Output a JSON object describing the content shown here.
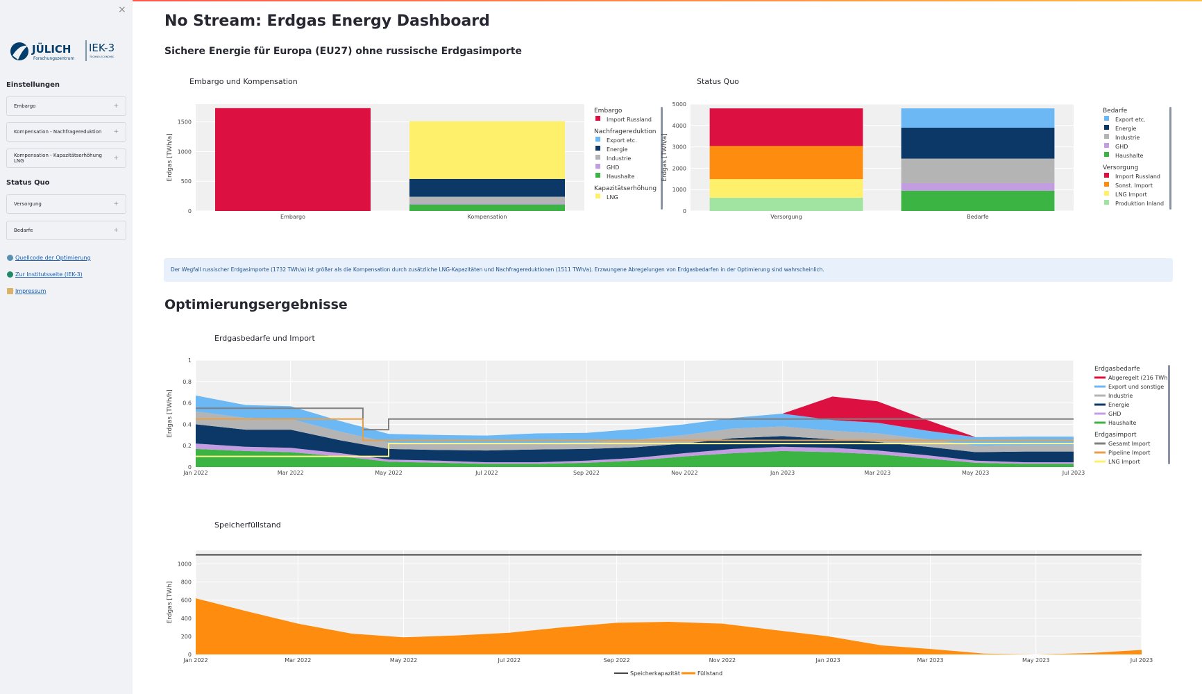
{
  "app": {
    "title": "No Stream: Erdgas Energy Dashboard",
    "subtitle": "Sichere Energie für Europa (EU27) ohne russische Erdgasimporte",
    "section2": "Optimierungsergebnisse"
  },
  "sidebar": {
    "close": "×",
    "logo_text": "JÜLICH",
    "logo_sub": "Forschungszentrum",
    "logo_inst": "IEK-3",
    "logo_inst_sub": "TECHNO-ECONOMIC SYSTEMS ANALYSIS",
    "heading1": "Einstellungen",
    "heading2": "Status Quo",
    "expanders1": [
      "Embargo",
      "Kompensation - Nachfragereduktion",
      "Kompensation - Kapazitätserhöhung LNG"
    ],
    "expanders2": [
      "Versorgung",
      "Bedarfe"
    ],
    "plus": "+",
    "links": [
      {
        "label": "Quellcode der Optimierung",
        "icon": "github-icon"
      },
      {
        "label": "Zur Institutsseite (IEK-3)",
        "icon": "globe-icon"
      },
      {
        "label": "Impressum",
        "icon": "scroll-icon"
      }
    ]
  },
  "banner": "Der Wegfall russischer Erdgasimporte (1732 TWh/a) ist größer als die Kompensation durch zusätzliche LNG-Kapazitäten und Nachfragereduktionen (1511 TWh/a). Erzwungene Abregelungen von Erdgasbedarfen in der Optimierung sind wahrscheinlich.",
  "colors": {
    "russland": "#dc1041",
    "sonst": "#fd8c0f",
    "lng": "#fff06b",
    "inland": "#a1e3a1",
    "export": "#6cb8f5",
    "energie": "#0c3867",
    "industrie": "#b4b4b4",
    "ghd": "#c49ce2",
    "haushalte": "#3bb443",
    "gesamt": "#808080",
    "pipeline": "#e8a048",
    "lngimport": "#fdf68a",
    "kapazitaet": "#444444",
    "fuellstand": "#fd8c0f"
  },
  "chart_data": [
    {
      "type": "bar",
      "title": "Embargo und Kompensation",
      "ylabel": "Erdgas [TWh/a]",
      "ylim": [
        0,
        1800
      ],
      "yticks": [
        0,
        500,
        1000,
        1500
      ],
      "categories": [
        "Embargo",
        "Kompensation"
      ],
      "legend_groups": [
        {
          "title": "Embargo",
          "items": [
            "Import Russland"
          ]
        },
        {
          "title": "Nachfragereduktion",
          "items": [
            "Export etc.",
            "Energie",
            "Industrie",
            "GHD",
            "Haushalte"
          ]
        },
        {
          "title": "Kapazitätserhöhung",
          "items": [
            "LNG"
          ]
        }
      ],
      "series": [
        {
          "name": "Haushalte",
          "color": "haushalte",
          "values": [
            0,
            110
          ]
        },
        {
          "name": "GHD",
          "color": "ghd",
          "values": [
            0,
            20
          ]
        },
        {
          "name": "Industrie",
          "color": "industrie",
          "values": [
            0,
            110
          ]
        },
        {
          "name": "Energie",
          "color": "energie",
          "values": [
            0,
            300
          ]
        },
        {
          "name": "Export etc.",
          "color": "export",
          "values": [
            0,
            0
          ]
        },
        {
          "name": "Import Russland",
          "color": "russland",
          "values": [
            1732,
            0
          ]
        },
        {
          "name": "LNG",
          "color": "lng",
          "values": [
            0,
            971
          ]
        }
      ]
    },
    {
      "type": "bar",
      "title": "Status Quo",
      "ylabel": "Erdgas [TWh/a]",
      "ylim": [
        0,
        5000
      ],
      "yticks": [
        0,
        1000,
        2000,
        3000,
        4000,
        5000
      ],
      "categories": [
        "Versorgung",
        "Bedarfe"
      ],
      "legend_groups": [
        {
          "title": "Bedarfe",
          "items": [
            "Export etc.",
            "Energie",
            "Industrie",
            "GHD",
            "Haushalte"
          ]
        },
        {
          "title": "Versorgung",
          "items": [
            "Import Russland",
            "Sonst. Import",
            "LNG Import",
            "Produktion Inland"
          ]
        }
      ],
      "series": [
        {
          "name": "Produktion Inland",
          "color": "inland",
          "values": [
            620,
            0
          ]
        },
        {
          "name": "LNG Import",
          "color": "lng",
          "values": [
            870,
            0
          ]
        },
        {
          "name": "Sonst. Import",
          "color": "sonst",
          "values": [
            1550,
            0
          ]
        },
        {
          "name": "Import Russland",
          "color": "russland",
          "values": [
            1760,
            0
          ]
        },
        {
          "name": "Haushalte",
          "color": "haushalte",
          "values": [
            0,
            950
          ]
        },
        {
          "name": "GHD",
          "color": "ghd",
          "values": [
            0,
            350
          ]
        },
        {
          "name": "Industrie",
          "color": "industrie",
          "values": [
            0,
            1150
          ]
        },
        {
          "name": "Energie",
          "color": "energie",
          "values": [
            0,
            1450
          ]
        },
        {
          "name": "Export etc.",
          "color": "export",
          "values": [
            0,
            900
          ]
        }
      ]
    },
    {
      "type": "area",
      "title": "Erdgasbedarfe und Import",
      "ylabel": "Erdgas [TWh/h]",
      "ylim": [
        0,
        1
      ],
      "yticks": [
        0,
        0.2,
        0.4,
        0.6,
        0.8,
        1
      ],
      "xlim": [
        "2022-01-01",
        "2023-07-01"
      ],
      "xticks": [
        "Jan 2022",
        "Mar 2022",
        "May 2022",
        "Jul 2022",
        "Sep 2022",
        "Nov 2022",
        "Jan 2023",
        "Mar 2023",
        "May 2023",
        "Jul 2023"
      ],
      "x": [
        "2022-01",
        "2022-02",
        "2022-03",
        "2022-04",
        "2022-05",
        "2022-06",
        "2022-07",
        "2022-08",
        "2022-09",
        "2022-10",
        "2022-11",
        "2022-12",
        "2023-01",
        "2023-02",
        "2023-03",
        "2023-04",
        "2023-05",
        "2023-06",
        "2023-07"
      ],
      "legend_groups": [
        {
          "title": "Erdgasbedarfe",
          "items": [
            "Abgeregelt (216 TWh)",
            "Export und sonstige",
            "Industrie",
            "Energie",
            "GHD",
            "Haushalte"
          ]
        },
        {
          "title": "Erdgasimport",
          "items": [
            "Gesamt Import",
            "Pipeline Import",
            "LNG Import"
          ]
        }
      ],
      "series": [
        {
          "name": "Haushalte",
          "color": "haushalte",
          "values": [
            0.17,
            0.15,
            0.14,
            0.1,
            0.05,
            0.04,
            0.03,
            0.03,
            0.04,
            0.06,
            0.1,
            0.13,
            0.15,
            0.14,
            0.12,
            0.08,
            0.04,
            0.03,
            0.03
          ]
        },
        {
          "name": "GHD",
          "color": "ghd",
          "values": [
            0.05,
            0.04,
            0.04,
            0.03,
            0.02,
            0.02,
            0.015,
            0.015,
            0.02,
            0.025,
            0.03,
            0.04,
            0.04,
            0.04,
            0.035,
            0.03,
            0.02,
            0.015,
            0.015
          ]
        },
        {
          "name": "Energie",
          "color": "energie",
          "values": [
            0.18,
            0.16,
            0.17,
            0.12,
            0.1,
            0.1,
            0.11,
            0.12,
            0.11,
            0.1,
            0.09,
            0.1,
            0.1,
            0.08,
            0.08,
            0.08,
            0.08,
            0.1,
            0.1
          ]
        },
        {
          "name": "Industrie",
          "color": "industrie",
          "values": [
            0.12,
            0.11,
            0.1,
            0.08,
            0.06,
            0.06,
            0.06,
            0.06,
            0.06,
            0.07,
            0.08,
            0.09,
            0.09,
            0.08,
            0.08,
            0.07,
            0.06,
            0.06,
            0.06
          ]
        },
        {
          "name": "Export und sonstige",
          "color": "export",
          "values": [
            0.15,
            0.12,
            0.12,
            0.1,
            0.08,
            0.08,
            0.08,
            0.09,
            0.09,
            0.1,
            0.1,
            0.1,
            0.12,
            0.1,
            0.1,
            0.08,
            0.08,
            0.08,
            0.08
          ]
        },
        {
          "name": "Abgeregelt (216 TWh)",
          "color": "russland",
          "values": [
            0,
            0,
            0,
            0,
            0,
            0,
            0,
            0,
            0,
            0,
            0,
            0,
            0,
            0.22,
            0.2,
            0.1,
            0,
            0,
            0
          ]
        }
      ],
      "lines": [
        {
          "name": "Gesamt Import",
          "color": "gesamt",
          "steps": [
            [
              "2022-01-01",
              0.55
            ],
            [
              "2022-04-15",
              0.35
            ],
            [
              "2022-05-01",
              0.45
            ],
            [
              "2023-07-01",
              0.45
            ]
          ]
        },
        {
          "name": "Pipeline Import",
          "color": "pipeline",
          "steps": [
            [
              "2022-01-01",
              0.45
            ],
            [
              "2022-04-15",
              0.25
            ],
            [
              "2023-07-01",
              0.25
            ]
          ]
        },
        {
          "name": "LNG Import",
          "color": "lngimport",
          "steps": [
            [
              "2022-01-01",
              0.1
            ],
            [
              "2022-05-01",
              0.22
            ],
            [
              "2023-07-01",
              0.22
            ]
          ]
        }
      ]
    },
    {
      "type": "area",
      "title": "Speicherfüllstand",
      "ylabel": "Erdgas [TWh]",
      "ylim": [
        0,
        1150
      ],
      "yticks": [
        0,
        200,
        400,
        600,
        800,
        1000
      ],
      "xlim": [
        "2022-01-01",
        "2023-07-01"
      ],
      "xticks": [
        "Jan 2022",
        "Mar 2022",
        "May 2022",
        "Jul 2022",
        "Sep 2022",
        "Nov 2022",
        "Jan 2023",
        "Mar 2023",
        "May 2023",
        "Jul 2023"
      ],
      "x": [
        "2022-01",
        "2022-02",
        "2022-03",
        "2022-04",
        "2022-05",
        "2022-06",
        "2022-07",
        "2022-08",
        "2022-09",
        "2022-10",
        "2022-11",
        "2022-12",
        "2023-01",
        "2023-02",
        "2023-03",
        "2023-04",
        "2023-05",
        "2023-06",
        "2023-07"
      ],
      "legend": [
        "Speicherkapazität",
        "Füllstand"
      ],
      "legend_position": "bottom",
      "series": [
        {
          "name": "Füllstand",
          "color": "fuellstand",
          "values": [
            620,
            470,
            340,
            230,
            190,
            210,
            240,
            300,
            350,
            360,
            340,
            270,
            200,
            100,
            60,
            10,
            0,
            15,
            50
          ]
        }
      ],
      "lines": [
        {
          "name": "Speicherkapazität",
          "color": "kapazitaet",
          "steps": [
            [
              "2022-01-01",
              1100
            ],
            [
              "2023-07-01",
              1100
            ]
          ]
        }
      ]
    }
  ]
}
